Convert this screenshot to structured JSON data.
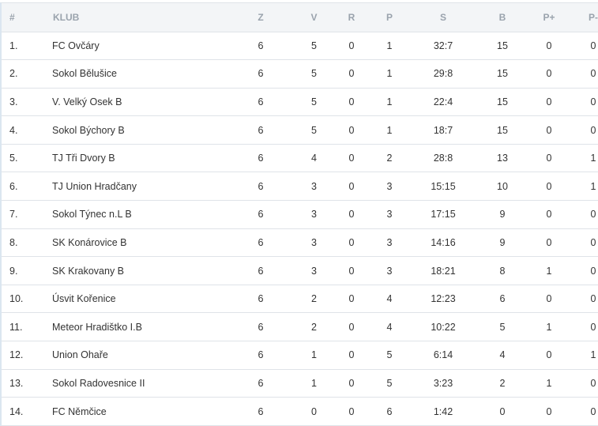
{
  "table": {
    "headers": [
      "#",
      "KLUB",
      "Z",
      "V",
      "R",
      "P",
      "S",
      "B",
      "P+",
      "P-"
    ],
    "rows": [
      [
        "1.",
        "FC Ovčáry",
        "6",
        "5",
        "0",
        "1",
        "32:7",
        "15",
        "0",
        "0"
      ],
      [
        "2.",
        "Sokol Bělušice",
        "6",
        "5",
        "0",
        "1",
        "29:8",
        "15",
        "0",
        "0"
      ],
      [
        "3.",
        "V. Velký Osek B",
        "6",
        "5",
        "0",
        "1",
        "22:4",
        "15",
        "0",
        "0"
      ],
      [
        "4.",
        "Sokol Býchory B",
        "6",
        "5",
        "0",
        "1",
        "18:7",
        "15",
        "0",
        "0"
      ],
      [
        "5.",
        "TJ Tři Dvory B",
        "6",
        "4",
        "0",
        "2",
        "28:8",
        "13",
        "0",
        "1"
      ],
      [
        "6.",
        "TJ Union Hradčany",
        "6",
        "3",
        "0",
        "3",
        "15:15",
        "10",
        "0",
        "1"
      ],
      [
        "7.",
        "Sokol Týnec n.L B",
        "6",
        "3",
        "0",
        "3",
        "17:15",
        "9",
        "0",
        "0"
      ],
      [
        "8.",
        "SK Konárovice B",
        "6",
        "3",
        "0",
        "3",
        "14:16",
        "9",
        "0",
        "0"
      ],
      [
        "9.",
        "SK Krakovany B",
        "6",
        "3",
        "0",
        "3",
        "18:21",
        "8",
        "1",
        "0"
      ],
      [
        "10.",
        "Úsvit Kořenice",
        "6",
        "2",
        "0",
        "4",
        "12:23",
        "6",
        "0",
        "0"
      ],
      [
        "11.",
        "Meteor Hradištko I.B",
        "6",
        "2",
        "0",
        "4",
        "10:22",
        "5",
        "1",
        "0"
      ],
      [
        "12.",
        "Union Ohaře",
        "6",
        "1",
        "0",
        "5",
        "6:14",
        "4",
        "0",
        "1"
      ],
      [
        "13.",
        "Sokol Radovesnice II",
        "6",
        "1",
        "0",
        "5",
        "3:23",
        "2",
        "1",
        "0"
      ],
      [
        "14.",
        "FC Němčice",
        "6",
        "0",
        "0",
        "6",
        "1:42",
        "0",
        "0",
        "0"
      ]
    ]
  }
}
